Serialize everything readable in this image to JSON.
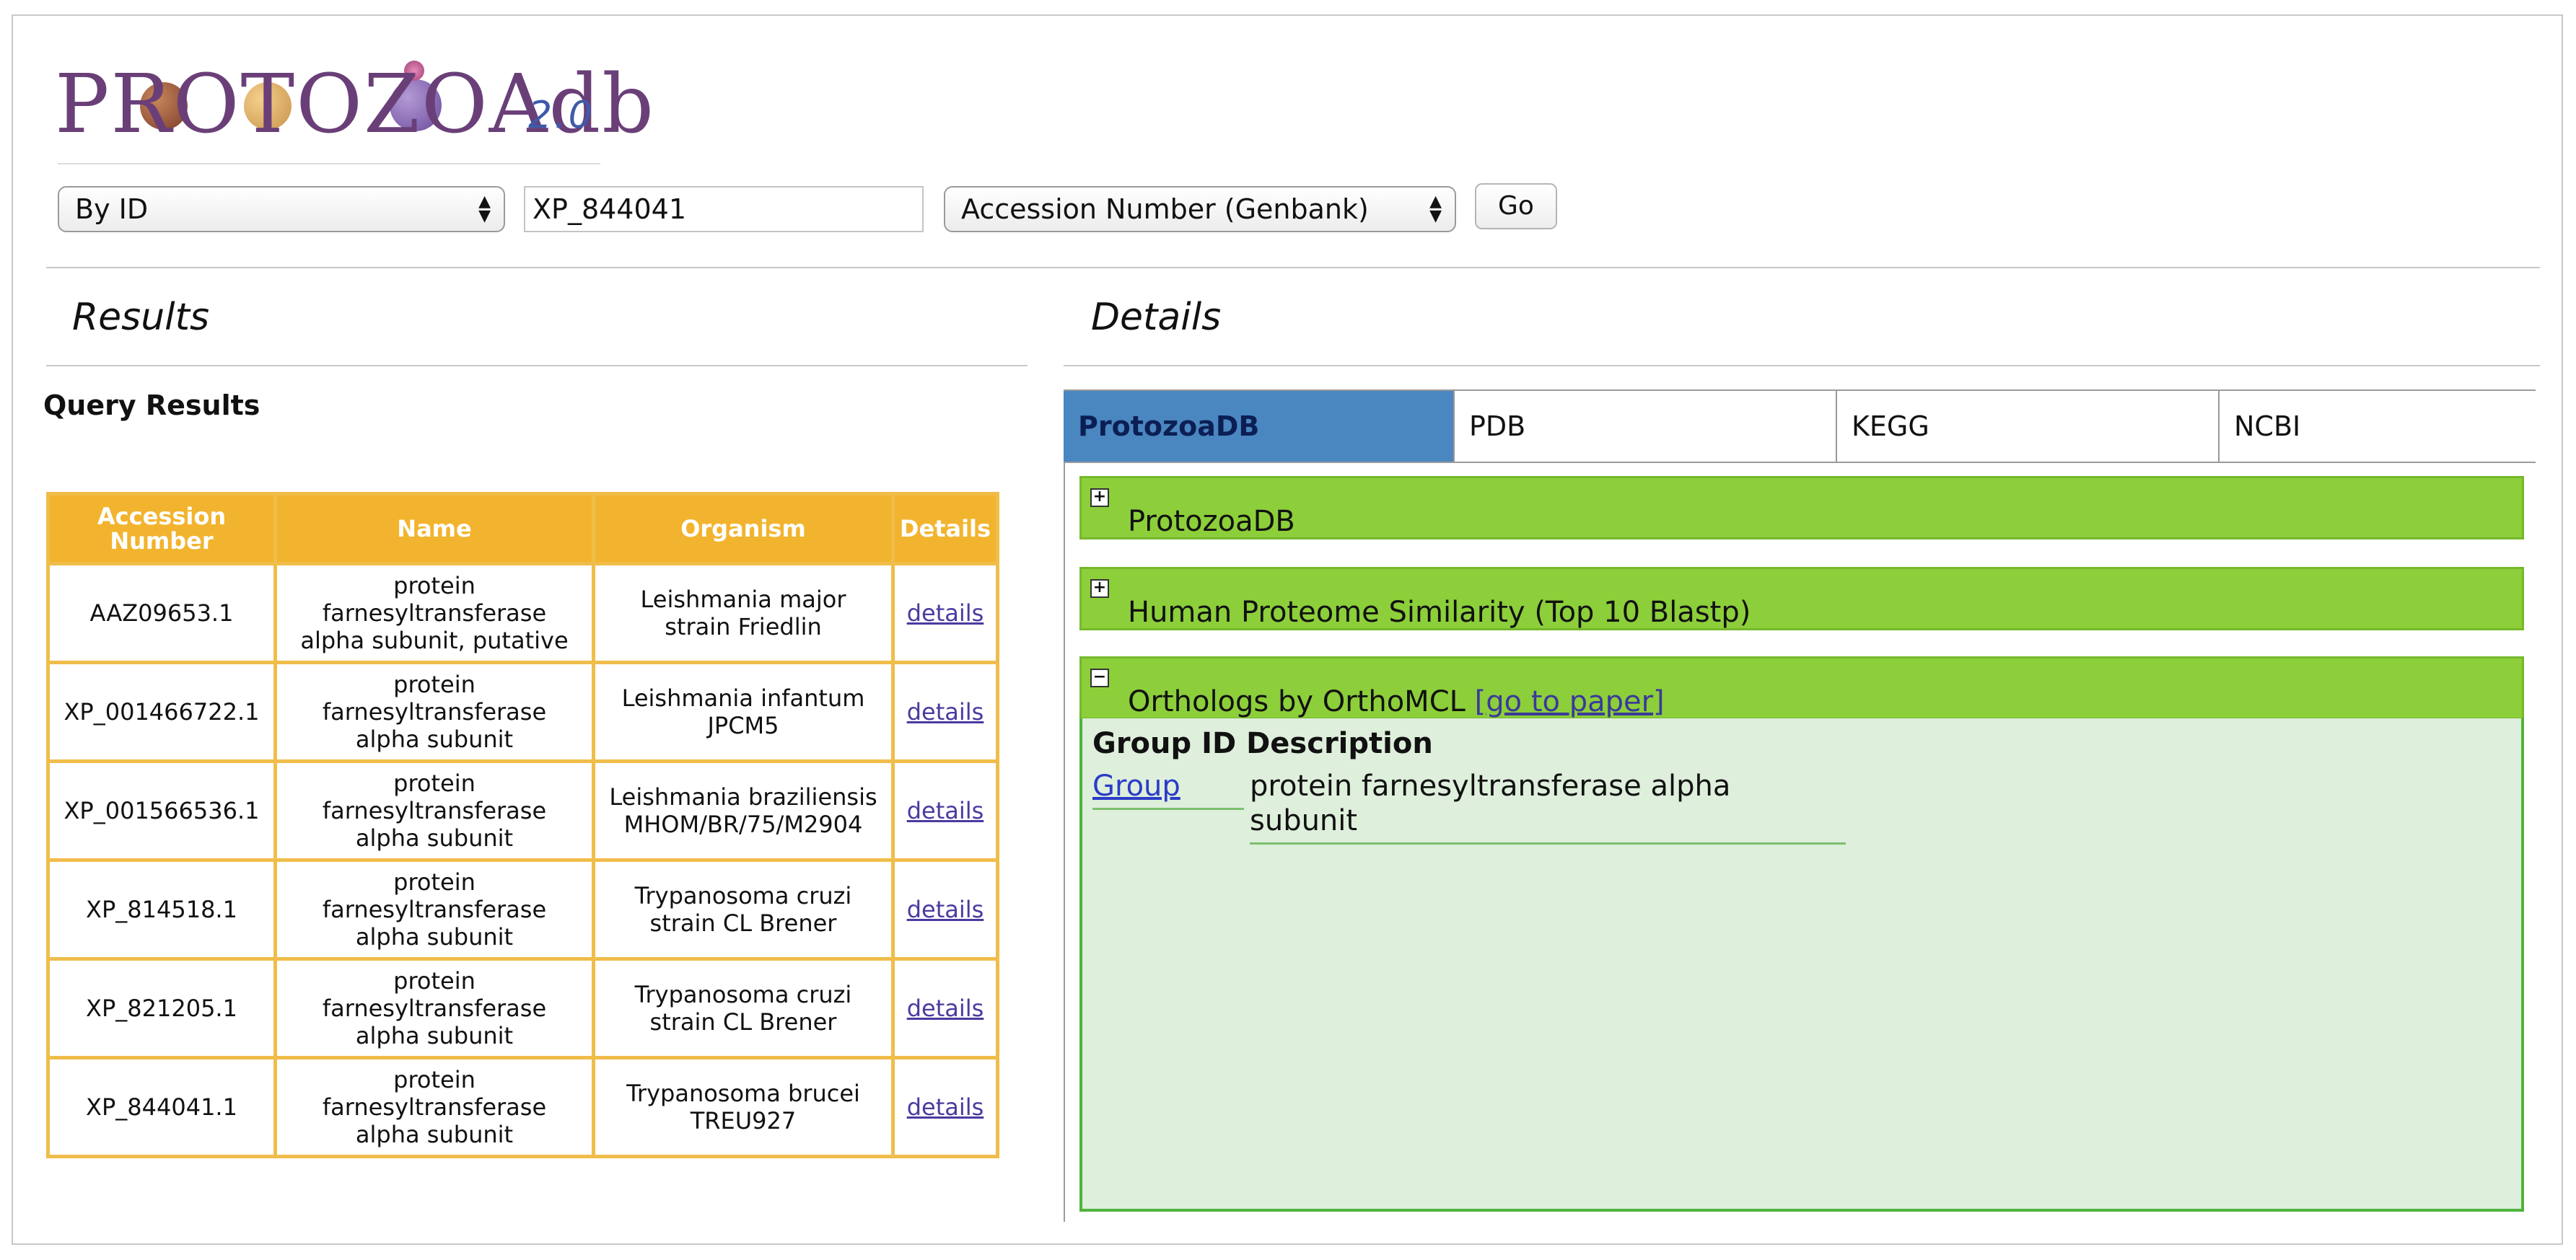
{
  "logo": {
    "wordmark": "PROTOZOAdb",
    "version": "2.0"
  },
  "search": {
    "mode_select": "By ID",
    "query_value": "XP_844041",
    "field_select": "Accession Number (Genbank)",
    "go_label": "Go"
  },
  "sections": {
    "results_title": "Results",
    "details_title": "Details"
  },
  "query_results": {
    "title": "Query Results",
    "columns": [
      "Accession Number",
      "Name",
      "Organism",
      "Details"
    ],
    "rows": [
      {
        "accession": "AAZ09653.1",
        "name": [
          "protein",
          "farnesyltransferase",
          "alpha subunit, putative"
        ],
        "organism": [
          "Leishmania major",
          "strain Friedlin"
        ],
        "details": "details"
      },
      {
        "accession": "XP_001466722.1",
        "name": [
          "protein",
          "farnesyltransferase",
          "alpha subunit"
        ],
        "organism": [
          "Leishmania infantum",
          "JPCM5"
        ],
        "details": "details"
      },
      {
        "accession": "XP_001566536.1",
        "name": [
          "protein",
          "farnesyltransferase",
          "alpha subunit"
        ],
        "organism": [
          "Leishmania braziliensis",
          "MHOM/BR/75/M2904"
        ],
        "details": "details"
      },
      {
        "accession": "XP_814518.1",
        "name": [
          "protein",
          "farnesyltransferase",
          "alpha subunit"
        ],
        "organism": [
          "Trypanosoma cruzi",
          "strain CL Brener"
        ],
        "details": "details"
      },
      {
        "accession": "XP_821205.1",
        "name": [
          "protein",
          "farnesyltransferase",
          "alpha subunit"
        ],
        "organism": [
          "Trypanosoma cruzi",
          "strain CL Brener"
        ],
        "details": "details"
      },
      {
        "accession": "XP_844041.1",
        "name": [
          "protein",
          "farnesyltransferase",
          "alpha subunit"
        ],
        "organism": [
          "Trypanosoma brucei",
          "TREU927"
        ],
        "details": "details"
      }
    ]
  },
  "details": {
    "tabs": [
      "ProtozoaDB",
      "PDB",
      "KEGG",
      "NCBI"
    ],
    "active_tab": "ProtozoaDB",
    "panels": {
      "protozoadb": {
        "toggle": "+",
        "label": "ProtozoaDB"
      },
      "human": {
        "toggle": "+",
        "label": "Human Proteome Similarity (Top 10 Blastp)"
      },
      "orthologs": {
        "toggle": "−",
        "label": "Orthologs by OrthoMCL",
        "link": "[go to paper]",
        "header": "Group ID Description",
        "group_link": "Group",
        "description": "protein farnesyltransferase alpha subunit"
      }
    }
  },
  "colors": {
    "tab_active": "#4a86c0",
    "accordion": "#8ccf3a",
    "table_header": "#f2b42e",
    "ortho_body": "#deefdc"
  }
}
